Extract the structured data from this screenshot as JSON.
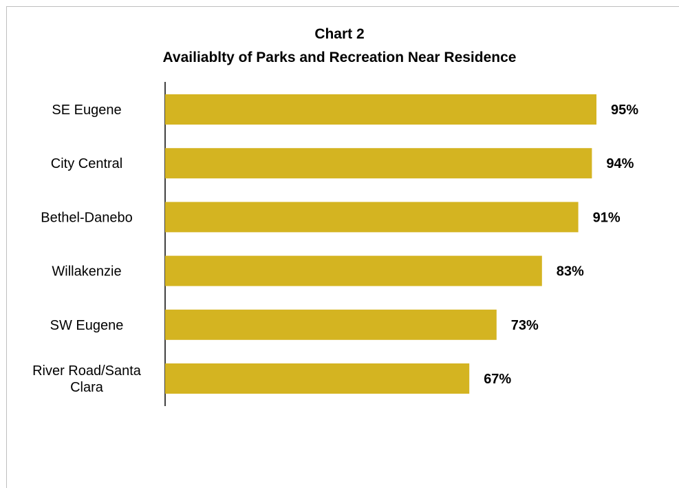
{
  "chart_data": {
    "type": "bar",
    "orientation": "horizontal",
    "title": "Chart 2",
    "subtitle": "Availiablty of Parks and Recreation Near Residence",
    "categories": [
      "SE Eugene",
      "City Central",
      "Bethel-Danebo",
      "Willakenzie",
      "SW Eugene",
      "River Road/Santa Clara"
    ],
    "category_lines": [
      [
        "SE Eugene"
      ],
      [
        "City Central"
      ],
      [
        "Bethel-Danebo"
      ],
      [
        "Willakenzie"
      ],
      [
        "SW Eugene"
      ],
      [
        "River Road/Santa",
        "Clara"
      ]
    ],
    "values": [
      95,
      94,
      91,
      83,
      73,
      67
    ],
    "value_labels": [
      "95%",
      "94%",
      "91%",
      "83%",
      "73%",
      "67%"
    ],
    "xlim": [
      0,
      100
    ],
    "grid": false,
    "legend": "none",
    "bar_color": "#D4B421"
  }
}
